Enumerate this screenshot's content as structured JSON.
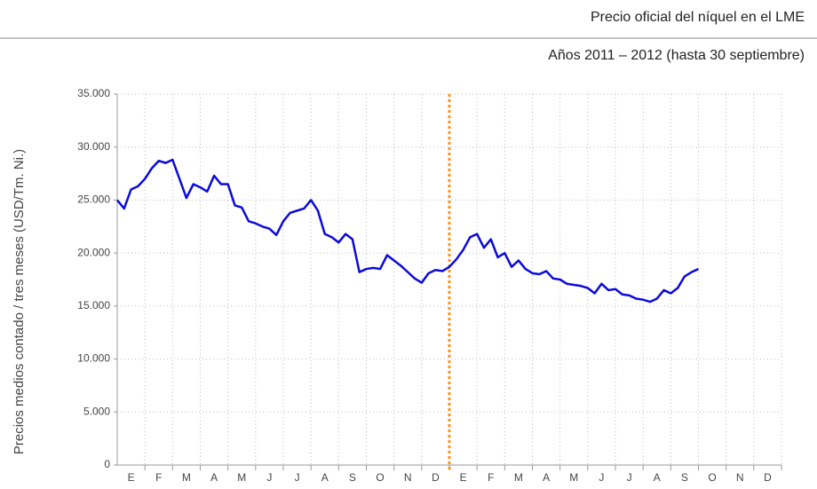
{
  "chart_data": {
    "type": "line",
    "title": "Precio oficial del níquel en el LME",
    "subtitle": "Años 2011 – 2012 (hasta 30 septiembre)",
    "y_label": "Precios medios contado / tres meses (USD/Tm. Ni.)",
    "categories": [
      "E",
      "F",
      "M",
      "A",
      "M",
      "J",
      "J",
      "A",
      "S",
      "O",
      "N",
      "D",
      "E",
      "F",
      "M",
      "A",
      "M",
      "J",
      "J",
      "A",
      "S",
      "O",
      "N",
      "D"
    ],
    "xlim": [
      0,
      24
    ],
    "x": [
      0,
      0.25,
      0.5,
      0.75,
      1,
      1.25,
      1.5,
      1.75,
      2,
      2.25,
      2.5,
      2.75,
      3,
      3.25,
      3.5,
      3.75,
      4,
      4.25,
      4.5,
      4.75,
      5,
      5.25,
      5.5,
      5.75,
      6,
      6.25,
      6.5,
      6.75,
      7,
      7.25,
      7.5,
      7.75,
      8,
      8.25,
      8.5,
      8.75,
      9,
      9.25,
      9.5,
      9.75,
      10,
      10.25,
      10.5,
      10.75,
      11,
      11.25,
      11.5,
      11.75,
      12,
      12.25,
      12.5,
      12.75,
      13,
      13.25,
      13.5,
      13.75,
      14,
      14.25,
      14.5,
      14.75,
      15,
      15.25,
      15.5,
      15.75,
      16,
      16.25,
      16.5,
      16.75,
      17,
      17.25,
      17.5,
      17.75,
      18,
      18.25,
      18.5,
      18.75,
      19,
      19.25,
      19.5,
      19.75,
      20,
      20.25,
      20.5,
      20.75,
      21
    ],
    "values": [
      25000,
      24200,
      26000,
      26300,
      27000,
      28000,
      28700,
      28500,
      28800,
      27000,
      25200,
      26500,
      26200,
      25800,
      27300,
      26500,
      26500,
      24500,
      24300,
      23000,
      22800,
      22500,
      22300,
      21700,
      23000,
      23800,
      24000,
      24200,
      25000,
      24000,
      21800,
      21500,
      21000,
      21800,
      21300,
      18200,
      18500,
      18600,
      18500,
      19800,
      19300,
      18800,
      18200,
      17600,
      17200,
      18100,
      18400,
      18300,
      18700,
      19400,
      20300,
      21500,
      21800,
      20500,
      21300,
      19600,
      20000,
      18700,
      19300,
      18500,
      18100,
      18000,
      18300,
      17600,
      17500,
      17100,
      17000,
      16900,
      16700,
      16200,
      17100,
      16500,
      16600,
      16100,
      16000,
      15700,
      15600,
      15400,
      15700,
      16500,
      16200,
      16700,
      17800,
      18200,
      18500
    ],
    "color": "#0a0adc",
    "ylim": [
      0,
      35000
    ],
    "yticks": [
      0,
      {
        "value": 5000,
        "label": "5.000"
      },
      {
        "value": 10000,
        "label": "10.000"
      },
      {
        "value": 15000,
        "label": "15.000"
      },
      {
        "value": 20000,
        "label": "20.000"
      },
      {
        "value": 25000,
        "label": "25.000"
      },
      {
        "value": 30000,
        "label": "30.000"
      },
      {
        "value": 35000,
        "label": "35.000"
      }
    ],
    "grid": true,
    "year_divider": {
      "x": 12,
      "color": "#f7941d"
    }
  }
}
